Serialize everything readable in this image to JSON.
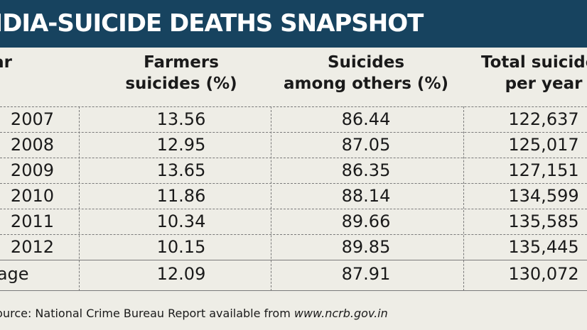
{
  "title": "INDIA-SUICIDE DEATHS SNAPSHOT",
  "headers": {
    "year": "Year",
    "farmers_l1": "Farmers",
    "farmers_l2": "suicides (%)",
    "others_l1": "Suicides",
    "others_l2": "among others (%)",
    "total_l1": "Total suicides",
    "total_l2": "per year"
  },
  "rows": [
    {
      "year": "2007",
      "farmers": "13.56",
      "others": "86.44",
      "total": "122,637"
    },
    {
      "year": "2008",
      "farmers": "12.95",
      "others": "87.05",
      "total": "125,017"
    },
    {
      "year": "2009",
      "farmers": "13.65",
      "others": "86.35",
      "total": "127,151"
    },
    {
      "year": "2010",
      "farmers": "11.86",
      "others": "88.14",
      "total": "134,599"
    },
    {
      "year": "2011",
      "farmers": "10.34",
      "others": "89.66",
      "total": "135,585"
    },
    {
      "year": "2012",
      "farmers": "10.15",
      "others": "89.85",
      "total": "135,445"
    }
  ],
  "average": {
    "label": "Average",
    "farmers": "12.09",
    "others": "87.91",
    "total": "130,072"
  },
  "source": {
    "text": "Source: National Crime Bureau Report available from ",
    "url": "www.ncrb.gov.in"
  },
  "chart_data": {
    "type": "table",
    "title": "INDIA-SUICIDE DEATHS SNAPSHOT",
    "columns": [
      "Year",
      "Farmers suicides (%)",
      "Suicides among others (%)",
      "Total suicides per year"
    ],
    "rows": [
      [
        "2007",
        13.56,
        86.44,
        122637
      ],
      [
        "2008",
        12.95,
        87.05,
        125017
      ],
      [
        "2009",
        13.65,
        86.35,
        127151
      ],
      [
        "2010",
        11.86,
        88.14,
        134599
      ],
      [
        "2011",
        10.34,
        89.66,
        135585
      ],
      [
        "2012",
        10.15,
        89.85,
        135445
      ],
      [
        "Average",
        12.09,
        87.91,
        130072
      ]
    ]
  },
  "colors": {
    "title_bar": "#17435f",
    "background": "#eeede6",
    "rule": "#7a7a7a"
  }
}
